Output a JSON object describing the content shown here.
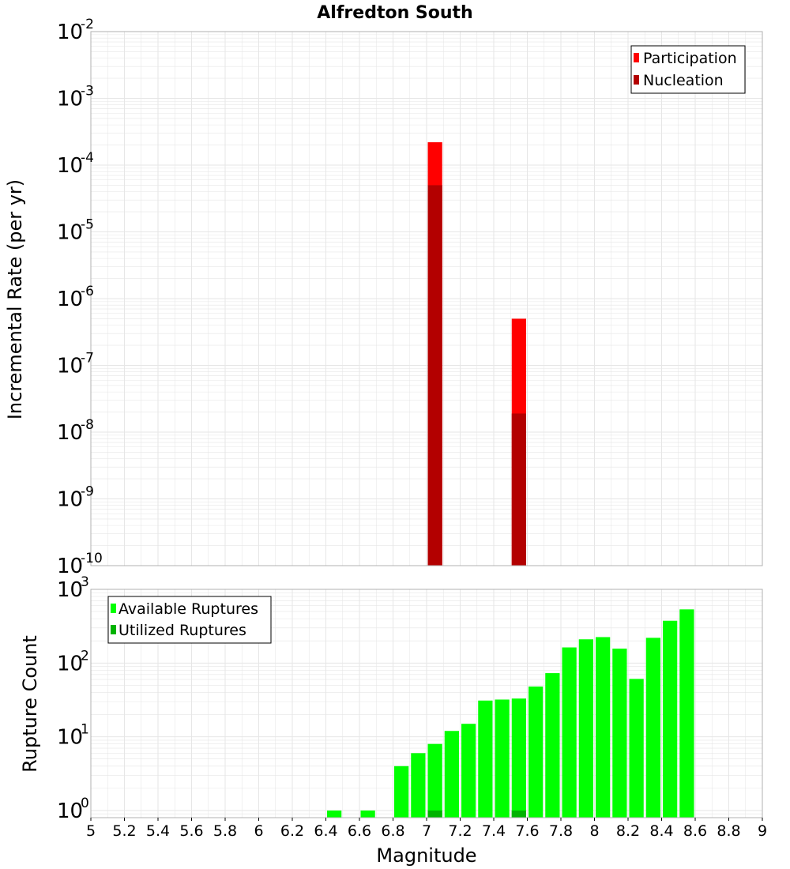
{
  "title": "Alfredton South",
  "colors": {
    "participation": "#ff0000",
    "nucleation": "#b30000",
    "available": "#00ff00",
    "utilized": "#00b300",
    "grid": "#e6e6e6",
    "frame": "#b0b0b0"
  },
  "chart_data": [
    {
      "type": "bar",
      "name": "rates",
      "scale": "log",
      "ylabel": "Incremental Rate (per yr)",
      "ylim": [
        1e-10,
        0.01
      ],
      "ytick_exponents": [
        -10,
        -9,
        -8,
        -7,
        -6,
        -5,
        -4,
        -3,
        -2
      ],
      "xlim": [
        5,
        9
      ],
      "bin_width": 0.1,
      "legend": {
        "position": "top-right",
        "entries": [
          "Participation",
          "Nucleation"
        ]
      },
      "series": [
        {
          "name": "Participation",
          "x": [
            7.05,
            7.55
          ],
          "values": [
            0.00022,
            5e-07
          ]
        },
        {
          "name": "Nucleation",
          "x": [
            7.05,
            7.55
          ],
          "values": [
            5e-05,
            1.9e-08
          ]
        }
      ]
    },
    {
      "type": "bar",
      "name": "counts",
      "scale": "log",
      "ylabel": "Rupture Count",
      "xlabel": "Magnitude",
      "ylim": [
        0.8,
        1000
      ],
      "ytick_exponents": [
        0,
        1,
        2,
        3
      ],
      "xlim": [
        5,
        9
      ],
      "xticks": [
        "5",
        "5.2",
        "5.4",
        "5.6",
        "5.8",
        "6",
        "6.2",
        "6.4",
        "6.6",
        "6.8",
        "7",
        "7.2",
        "7.4",
        "7.6",
        "7.8",
        "8",
        "8.2",
        "8.4",
        "8.6",
        "8.8",
        "9"
      ],
      "bin_width": 0.1,
      "legend": {
        "position": "top-left",
        "entries": [
          "Available Ruptures",
          "Utilized Ruptures"
        ]
      },
      "series": [
        {
          "name": "Available Ruptures",
          "x": [
            6.45,
            6.65,
            6.85,
            6.95,
            7.05,
            7.15,
            7.25,
            7.35,
            7.45,
            7.55,
            7.65,
            7.75,
            7.85,
            7.95,
            8.05,
            8.15,
            8.25,
            8.35,
            8.45,
            8.55
          ],
          "values": [
            1,
            1,
            4,
            6,
            8,
            12,
            15,
            31,
            32,
            33,
            48,
            73,
            163,
            210,
            225,
            157,
            61,
            220,
            375,
            535
          ]
        },
        {
          "name": "Utilized Ruptures",
          "x": [
            7.05,
            7.55
          ],
          "values": [
            1,
            1
          ]
        }
      ]
    }
  ]
}
